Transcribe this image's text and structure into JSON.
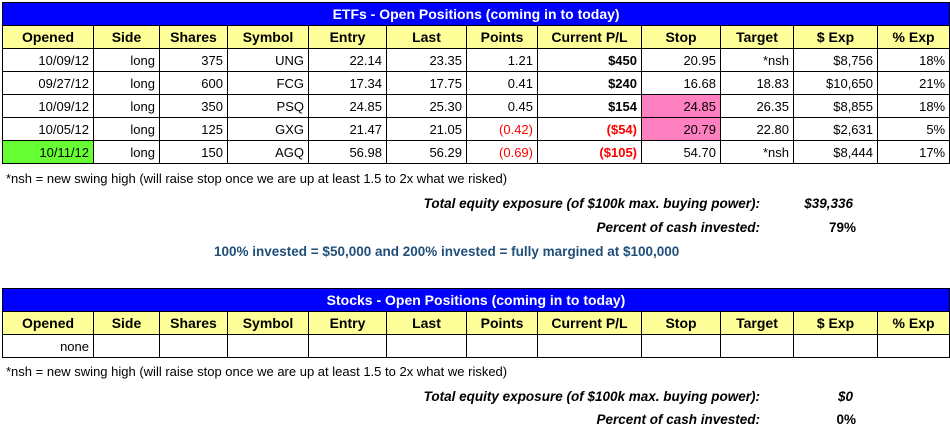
{
  "etf": {
    "title": "ETFs - Open Positions (coming in to today)",
    "headers": [
      "Opened",
      "Side",
      "Shares",
      "Symbol",
      "Entry",
      "Last",
      "Points",
      "Current P/L",
      "Stop",
      "Target",
      "$ Exp",
      "% Exp"
    ],
    "rows": [
      {
        "opened": "10/09/12",
        "side": "long",
        "shares": "375",
        "symbol": "UNG",
        "entry": "22.14",
        "last": "23.35",
        "points": "1.21",
        "pl": "$450",
        "stop": "20.95",
        "target": "*nsh",
        "exp": "$8,756",
        "pexp": "18%"
      },
      {
        "opened": "09/27/12",
        "side": "long",
        "shares": "600",
        "symbol": "FCG",
        "entry": "17.34",
        "last": "17.75",
        "points": "0.41",
        "pl": "$240",
        "stop": "16.68",
        "target": "18.83",
        "exp": "$10,650",
        "pexp": "21%"
      },
      {
        "opened": "10/09/12",
        "side": "long",
        "shares": "350",
        "symbol": "PSQ",
        "entry": "24.85",
        "last": "25.30",
        "points": "0.45",
        "pl": "$154",
        "stop": "24.85",
        "target": "26.35",
        "exp": "$8,855",
        "pexp": "18%"
      },
      {
        "opened": "10/05/12",
        "side": "long",
        "shares": "125",
        "symbol": "GXG",
        "entry": "21.47",
        "last": "21.05",
        "points": "(0.42)",
        "pl": "($54)",
        "stop": "20.79",
        "target": "22.80",
        "exp": "$2,631",
        "pexp": "5%"
      },
      {
        "opened": "10/11/12",
        "side": "long",
        "shares": "150",
        "symbol": "AGQ",
        "entry": "56.98",
        "last": "56.29",
        "points": "(0.69)",
        "pl": "($105)",
        "stop": "54.70",
        "target": "*nsh",
        "exp": "$8,444",
        "pexp": "17%"
      }
    ],
    "note": "*nsh = new swing high (will raise stop once we are up at least 1.5 to 2x what we risked)",
    "exposure_label": "Total equity exposure (of $100k max. buying power):",
    "exposure_value": "$39,336",
    "percent_label": "Percent of cash invested:",
    "percent_value": "79%",
    "margin_note": "100% invested = $50,000 and 200% invested = fully margined at $100,000"
  },
  "stocks": {
    "title": "Stocks - Open Positions (coming in to today)",
    "headers": [
      "Opened",
      "Side",
      "Shares",
      "Symbol",
      "Entry",
      "Last",
      "Points",
      "Current P/L",
      "Stop",
      "Target",
      "$ Exp",
      "% Exp"
    ],
    "row": {
      "opened": "none"
    },
    "note": "*nsh = new swing high (will raise stop once we are up at least 1.5 to 2x what we risked)",
    "exposure_label": "Total equity exposure (of $100k max. buying power):",
    "exposure_value": "$0",
    "percent_label": "Percent of cash invested:",
    "percent_value": "0%"
  },
  "colors": {
    "banner": "#0000ff",
    "header": "#ffff99",
    "negative": "#ff0000",
    "stop_highlight": "#ff80c0",
    "new_position": "#66ff33",
    "margin_note": "#1f4e79"
  }
}
